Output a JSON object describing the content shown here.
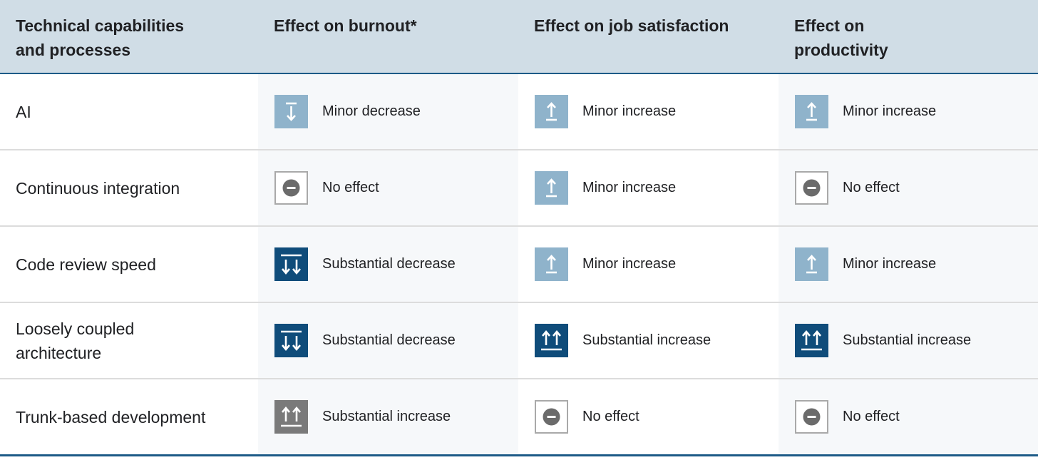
{
  "table": {
    "headers": [
      "Technical capabilities and processes",
      "Effect on burnout*",
      "Effect on job satisfaction",
      "Effect on productivity"
    ],
    "rows": [
      [
        "AI",
        "Minor decrease",
        "Minor increase",
        "Minor increase"
      ],
      [
        "Continuous integration",
        "No effect",
        "Minor increase",
        "No effect"
      ],
      [
        "Code review speed",
        "Substantial decrease",
        "Minor increase",
        "Minor increase"
      ],
      [
        "Loosely coupled architecture",
        "Substantial decrease",
        "Substantial increase",
        "Substantial increase"
      ],
      [
        "Trunk-based development",
        "Substantial increase",
        "No effect",
        "No effect"
      ]
    ]
  }
}
